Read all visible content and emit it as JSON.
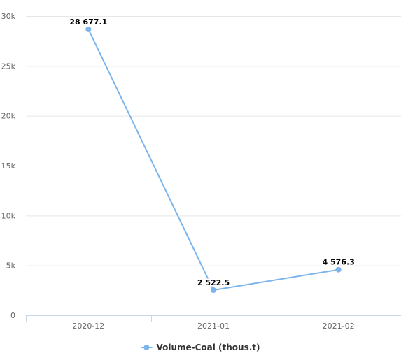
{
  "chart_data": {
    "type": "line",
    "categories": [
      "2020-12",
      "2021-01",
      "2021-02"
    ],
    "series": [
      {
        "name": "Volume-Coal (thous.t)",
        "values": [
          28677.1,
          2522.5,
          4576.3
        ],
        "value_labels": [
          "28 677.1",
          "2 522.5",
          "4 576.3"
        ],
        "color": "#7cb5ec"
      }
    ],
    "yticks": [
      0,
      5000,
      10000,
      15000,
      20000,
      25000,
      30000
    ],
    "ytick_labels": [
      "0",
      "5k",
      "10k",
      "15k",
      "20k",
      "25k",
      "30k"
    ],
    "ylim": [
      0,
      30000
    ],
    "grid": true,
    "legend_position": "bottom-center",
    "colors": {
      "grid": "#e6e6e6",
      "axis": "#ccd6eb",
      "series": "#7cb5ec"
    }
  }
}
